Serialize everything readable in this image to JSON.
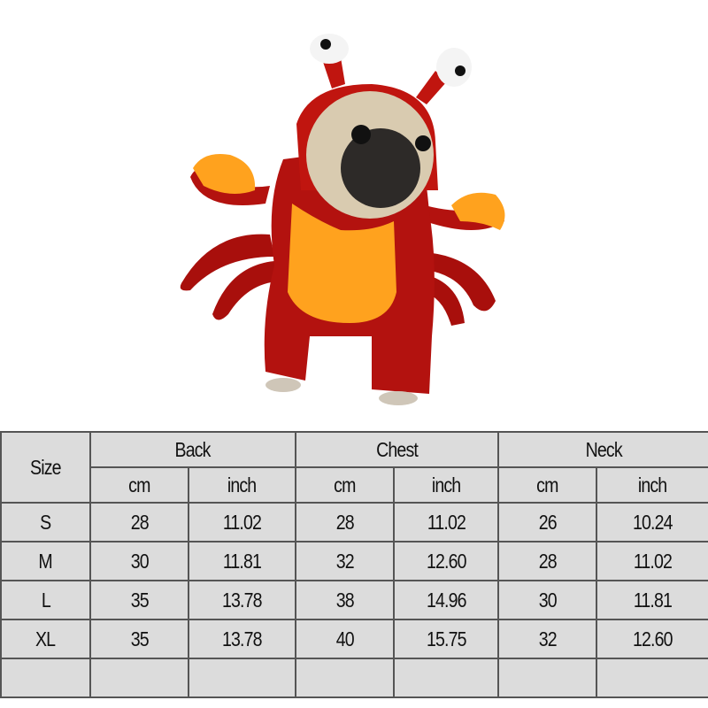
{
  "product": {
    "image": "pug-in-red-crab-costume"
  },
  "size_table": {
    "size_header": "Size",
    "groups": [
      "Back",
      "Chest",
      "Neck"
    ],
    "units": [
      "cm",
      "inch",
      "cm",
      "inch",
      "cm",
      "inch"
    ],
    "rows": [
      {
        "size": "S",
        "values": [
          "28",
          "11.02",
          "28",
          "11.02",
          "26",
          "10.24"
        ]
      },
      {
        "size": "M",
        "values": [
          "30",
          "11.81",
          "32",
          "12.60",
          "28",
          "11.02"
        ]
      },
      {
        "size": "L",
        "values": [
          "35",
          "13.78",
          "38",
          "14.96",
          "30",
          "11.81"
        ]
      },
      {
        "size": "XL",
        "values": [
          "35",
          "13.78",
          "40",
          "15.75",
          "32",
          "12.60"
        ]
      }
    ]
  },
  "colors": {
    "costume_red": "#b3120f",
    "costume_orange": "#ffa21e",
    "table_bg": "#dcdcdc",
    "table_border": "#555555"
  }
}
